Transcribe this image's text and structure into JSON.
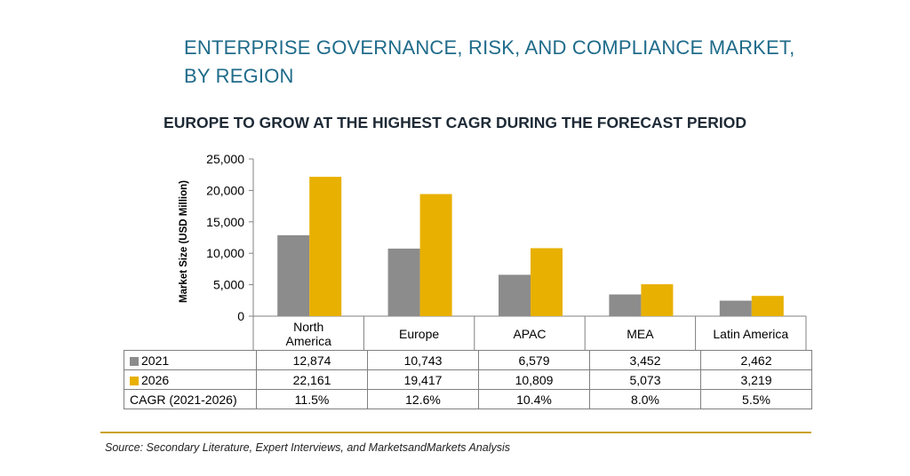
{
  "header": {
    "title_line1": "ENTERPRISE GOVERNANCE, RISK, AND COMPLIANCE MARKET,",
    "title_line2": "BY REGION",
    "subtitle": "EUROPE TO GROW AT THE HIGHEST CAGR DURING THE FORECAST PERIOD"
  },
  "chart_data": {
    "type": "bar",
    "categories": [
      "North America",
      "Europe",
      "APAC",
      "MEA",
      "Latin America"
    ],
    "category_label_lines": [
      [
        "North",
        "America"
      ],
      [
        "Europe"
      ],
      [
        "APAC"
      ],
      [
        "MEA"
      ],
      [
        "Latin America"
      ]
    ],
    "series": [
      {
        "name": "2021",
        "color": "#8c8c8c",
        "values": [
          12874,
          10743,
          6579,
          3452,
          2462
        ]
      },
      {
        "name": "2026",
        "color": "#e8b000",
        "values": [
          22161,
          19417,
          10809,
          5073,
          3219
        ]
      }
    ],
    "ylabel": "Market Size (USD Million)",
    "ylim": [
      0,
      25000
    ],
    "yticks": [
      0,
      5000,
      10000,
      15000,
      20000,
      25000
    ],
    "ytick_labels": [
      "0",
      "5,000",
      "10,000",
      "15,000",
      "20,000",
      "25,000"
    ],
    "grid": false,
    "legend": "in-table"
  },
  "table": {
    "rows": [
      {
        "label": "2021",
        "swatch": "#8c8c8c",
        "values": [
          "12,874",
          "10,743",
          "6,579",
          "3,452",
          "2,462"
        ]
      },
      {
        "label": "2026",
        "swatch": "#e8b000",
        "values": [
          "22,161",
          "19,417",
          "10,809",
          "5,073",
          "3,219"
        ]
      },
      {
        "label": "CAGR (2021-2026)",
        "swatch": "",
        "values": [
          "11.5%",
          "12.6%",
          "10.4%",
          "8.0%",
          "5.5%"
        ]
      }
    ]
  },
  "footer": {
    "source": "Source: Secondary Literature, Expert Interviews, and MarketsandMarkets Analysis"
  }
}
